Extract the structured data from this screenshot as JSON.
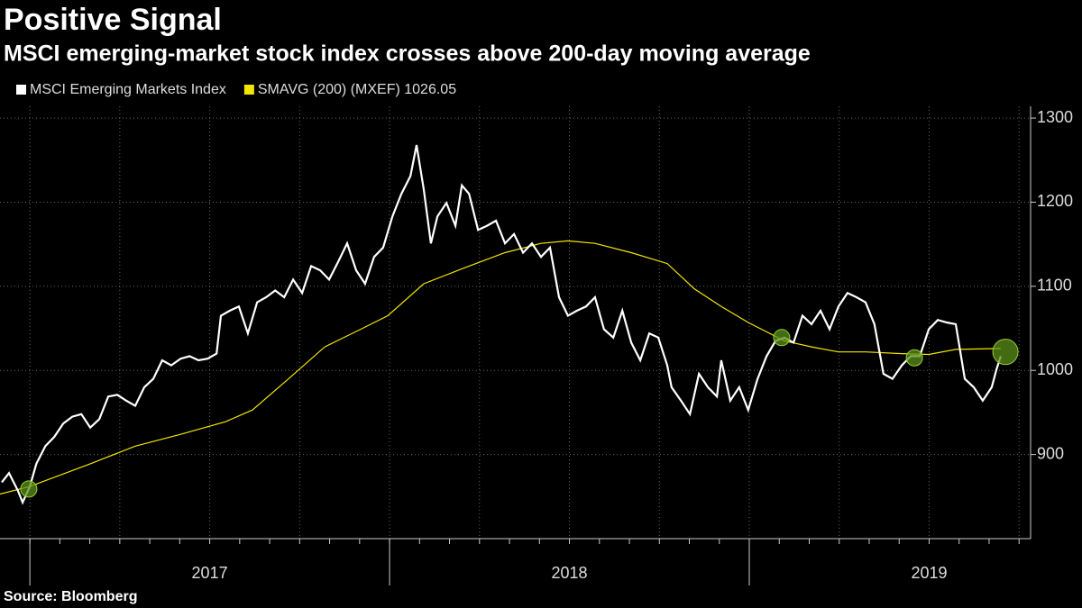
{
  "chart_data": {
    "type": "line",
    "title": "Positive Signal",
    "subtitle": "MSCI emerging-market stock index crosses above 200-day moving average",
    "source": "Source: Bloomberg",
    "xlim": [
      2016.917,
      2019.762
    ],
    "xticks": [
      {
        "value": 2017,
        "label": "2017"
      },
      {
        "value": 2018,
        "label": "2018"
      },
      {
        "value": 2019,
        "label": "2019"
      }
    ],
    "ylim": [
      800,
      1314
    ],
    "yticks": [
      900,
      1000,
      1100,
      1200,
      1300
    ],
    "grid": true,
    "series": [
      {
        "name": "MSCI Emerging Markets Index",
        "color": "#ffffff",
        "x": [
          2016.922,
          2016.942,
          2016.967,
          2016.98,
          2017.0,
          2017.018,
          2017.043,
          2017.068,
          2017.093,
          2017.118,
          2017.143,
          2017.168,
          2017.193,
          2017.218,
          2017.243,
          2017.268,
          2017.293,
          2017.318,
          2017.343,
          2017.368,
          2017.393,
          2017.419,
          2017.444,
          2017.469,
          2017.494,
          2017.519,
          2017.531,
          2017.556,
          2017.581,
          2017.606,
          2017.632,
          2017.657,
          2017.682,
          2017.707,
          2017.732,
          2017.757,
          2017.782,
          2017.807,
          2017.832,
          2017.857,
          2017.882,
          2017.907,
          2017.932,
          2017.957,
          2017.982,
          2018.008,
          2018.033,
          2018.058,
          2018.075,
          2018.095,
          2018.115,
          2018.133,
          2018.158,
          2018.183,
          2018.201,
          2018.221,
          2018.246,
          2018.271,
          2018.296,
          2018.321,
          2018.346,
          2018.371,
          2018.396,
          2018.421,
          2018.446,
          2018.471,
          2018.496,
          2018.521,
          2018.546,
          2018.571,
          2018.596,
          2018.622,
          2018.647,
          2018.672,
          2018.697,
          2018.722,
          2018.747,
          2018.772,
          2018.784,
          2018.81,
          2018.835,
          2018.86,
          2018.885,
          2018.91,
          2018.922,
          2018.947,
          2018.972,
          2018.997,
          2019.023,
          2019.048,
          2019.073,
          2019.098,
          2019.123,
          2019.148,
          2019.173,
          2019.198,
          2019.223,
          2019.248,
          2019.273,
          2019.298,
          2019.323,
          2019.348,
          2019.373,
          2019.398,
          2019.424,
          2019.449,
          2019.474,
          2019.499,
          2019.524,
          2019.549,
          2019.574,
          2019.599,
          2019.624,
          2019.649,
          2019.674,
          2019.687,
          2019.699
        ],
        "values": [
          867,
          878,
          857,
          843,
          862,
          889,
          910,
          921,
          937,
          945,
          948,
          932,
          942,
          969,
          971,
          964,
          958,
          980,
          990,
          1012,
          1006,
          1014,
          1017,
          1012,
          1014,
          1020,
          1065,
          1071,
          1076,
          1044,
          1081,
          1087,
          1095,
          1087,
          1108,
          1092,
          1124,
          1119,
          1108,
          1129,
          1151,
          1119,
          1103,
          1135,
          1146,
          1183,
          1210,
          1231,
          1268,
          1215,
          1151,
          1183,
          1199,
          1172,
          1220,
          1210,
          1167,
          1172,
          1178,
          1151,
          1162,
          1140,
          1151,
          1135,
          1146,
          1087,
          1065,
          1071,
          1076,
          1087,
          1049,
          1039,
          1071,
          1033,
          1012,
          1044,
          1039,
          1006,
          980,
          964,
          948,
          996,
          980,
          969,
          1012,
          964,
          980,
          953,
          990,
          1017,
          1035,
          1039,
          1033,
          1065,
          1055,
          1071,
          1049,
          1076,
          1092,
          1087,
          1081,
          1055,
          996,
          990,
          1006,
          1017,
          1017,
          1049,
          1060,
          1057,
          1055,
          990,
          980,
          964,
          980,
          1001,
          1017
        ]
      },
      {
        "name": "SMAVG (200) (MXEF) 1026.05",
        "color": "#f2e600",
        "x": [
          2016.917,
          2017.0,
          2017.168,
          2017.293,
          2017.419,
          2017.544,
          2017.619,
          2017.719,
          2017.82,
          2017.92,
          2017.995,
          2018.095,
          2018.221,
          2018.321,
          2018.421,
          2018.496,
          2018.571,
          2018.672,
          2018.772,
          2018.847,
          2018.922,
          2018.997,
          2019.098,
          2019.173,
          2019.248,
          2019.323,
          2019.424,
          2019.499,
          2019.574,
          2019.699
        ],
        "values": [
          853,
          862,
          889,
          910,
          924,
          939,
          953,
          990,
          1028,
          1049,
          1065,
          1103,
          1124,
          1140,
          1151,
          1154,
          1151,
          1140,
          1127,
          1097,
          1076,
          1057,
          1035,
          1028,
          1022,
          1022,
          1020,
          1019,
          1025,
          1026
        ]
      }
    ],
    "markers": {
      "color": "#5a8f1a",
      "x": [
        2016.997,
        2019.09,
        2019.459,
        2019.712
      ],
      "y": [
        859,
        1039,
        1015,
        1022
      ]
    }
  }
}
